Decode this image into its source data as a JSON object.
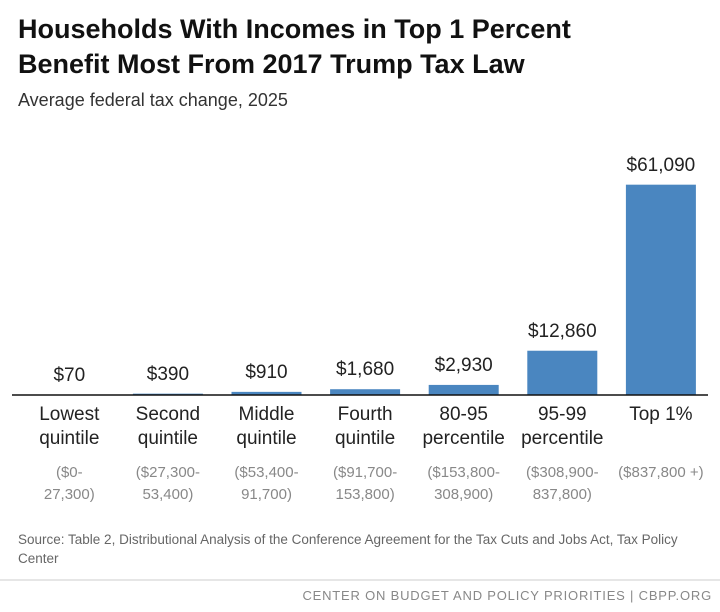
{
  "chart_data": {
    "type": "bar",
    "title": "Households With Incomes in Top 1 Percent\nBenefit Most From 2017 Trump Tax Law",
    "subtitle": "Average federal tax change, 2025",
    "categories": [
      "Lowest\nquintile",
      "Second\nquintile",
      "Middle\nquintile",
      "Fourth\nquintile",
      "80-95\npercentile",
      "95-99\npercentile",
      "Top 1%"
    ],
    "category_ranges": [
      "($0-\n27,300)",
      "($27,300-\n53,400)",
      "($53,400-\n91,700)",
      "($91,700-\n153,800)",
      "($153,800-\n308,900)",
      "($308,900-\n837,800)",
      "($837,800 +)"
    ],
    "values": [
      70,
      390,
      910,
      1680,
      2930,
      12860,
      61090
    ],
    "value_labels": [
      "$70",
      "$390",
      "$910",
      "$1,680",
      "$2,930",
      "$12,860",
      "$61,090"
    ],
    "color": "#4a86c0",
    "ylim": [
      0,
      70000
    ],
    "source": "Source: Table 2, Distributional Analysis of the Conference Agreement for the Tax Cuts and Jobs Act, Tax Policy Center",
    "footer": "CENTER ON BUDGET AND POLICY PRIORITIES | CBPP.ORG"
  }
}
